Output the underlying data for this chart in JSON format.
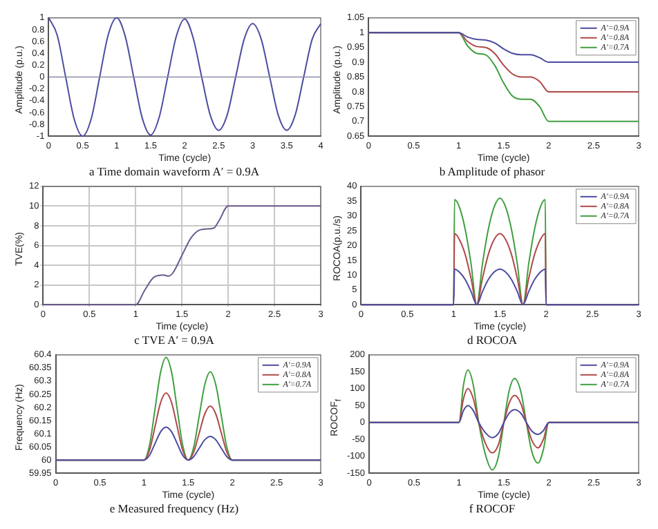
{
  "chart_data": [
    {
      "type": "line",
      "title": "a Time domain waveform A′ = 0.9A",
      "xlabel": "Time (cycle)",
      "ylabel": "Amplitude (p.u.)",
      "x": [
        0,
        0.125,
        0.25,
        0.375,
        0.5,
        0.625,
        0.75,
        0.875,
        1,
        1.125,
        1.25,
        1.375,
        1.5,
        1.625,
        1.75,
        1.875,
        2,
        2.125,
        2.25,
        2.375,
        2.5,
        2.625,
        2.75,
        2.875,
        3,
        3.125,
        3.25,
        3.375,
        3.5,
        3.625,
        3.75,
        3.875,
        4
      ],
      "series": [
        {
          "color": "#4b4ba0",
          "values": [
            1,
            0.71,
            0,
            -0.71,
            -1,
            -0.71,
            0,
            0.71,
            1,
            0.69,
            0,
            -0.69,
            -0.98,
            -0.68,
            0,
            0.68,
            0.98,
            0.66,
            0,
            -0.64,
            -0.9,
            -0.64,
            0,
            0.64,
            0.9,
            0.64,
            0,
            -0.64,
            -0.9,
            -0.64,
            0,
            0.64,
            0.9
          ]
        }
      ],
      "xlim": [
        0,
        4
      ],
      "xticks": [
        0,
        0.5,
        1,
        1.5,
        2,
        2.5,
        3,
        3.5,
        4
      ],
      "ylim": [
        -1,
        1
      ],
      "yticks": [
        -1,
        -0.8,
        -0.6,
        -0.4,
        -0.2,
        0,
        0.2,
        0.4,
        0.6,
        0.8,
        1
      ],
      "ref_lines": [
        {
          "axis": "y",
          "value": 0,
          "color": "#8a8aa8"
        }
      ],
      "marker": "none",
      "line_style": "solid"
    },
    {
      "type": "line",
      "title": "b Amplitude of phasor",
      "xlabel": "Time (cycle)",
      "ylabel": "Amplitude (p.u.)",
      "x": [
        0,
        1,
        1.1,
        1.2,
        1.3,
        1.4,
        1.5,
        1.6,
        1.7,
        1.8,
        1.9,
        2,
        3
      ],
      "series": [
        {
          "name": "A′=0.9A",
          "color": "#4b4ba0",
          "values": [
            1,
            1,
            0.985,
            0.977,
            0.975,
            0.965,
            0.945,
            0.93,
            0.925,
            0.925,
            0.915,
            0.9,
            0.9
          ]
        },
        {
          "name": "A′=0.8A",
          "color": "#b04848",
          "values": [
            1,
            1,
            0.97,
            0.953,
            0.95,
            0.93,
            0.89,
            0.86,
            0.85,
            0.85,
            0.835,
            0.8,
            0.8
          ]
        },
        {
          "name": "A′=0.7A",
          "color": "#3f9f3f",
          "values": [
            1,
            1,
            0.955,
            0.93,
            0.925,
            0.89,
            0.83,
            0.785,
            0.775,
            0.775,
            0.75,
            0.7,
            0.7
          ]
        }
      ],
      "xlim": [
        0,
        3
      ],
      "xticks": [
        0,
        0.5,
        1,
        1.5,
        2,
        2.5,
        3
      ],
      "ylim": [
        0.65,
        1.05
      ],
      "yticks": [
        0.65,
        0.7,
        0.75,
        0.8,
        0.85,
        0.9,
        0.95,
        1,
        1.05
      ],
      "legend": "top right",
      "marker": "none",
      "line_style": "solid"
    },
    {
      "type": "line",
      "title": "c TVE A′ = 0.9A",
      "xlabel": "Time (cycle)",
      "ylabel": "TVE(%)",
      "x": [
        0,
        1,
        1.1,
        1.2,
        1.3,
        1.35,
        1.4,
        1.5,
        1.6,
        1.7,
        1.8,
        1.85,
        1.9,
        2,
        3
      ],
      "series": [
        {
          "color": "#6a5a8a",
          "values": [
            0,
            0,
            1.5,
            2.8,
            3,
            2.9,
            3.2,
            5,
            6.8,
            7.6,
            7.7,
            7.8,
            8.5,
            10,
            10
          ]
        }
      ],
      "xlim": [
        0,
        3
      ],
      "xticks": [
        0,
        0.5,
        1,
        1.5,
        2,
        2.5,
        3
      ],
      "ylim": [
        0,
        12
      ],
      "yticks": [
        0,
        2,
        4,
        6,
        8,
        10,
        12
      ],
      "grid": true,
      "marker": "none",
      "line_style": "solid"
    },
    {
      "type": "line",
      "title": "d ROCOA",
      "xlabel": "Time (cycle)",
      "ylabel": "ROCOA(p.u./s)",
      "x": [
        0,
        1,
        1.01,
        1.0625,
        1.125,
        1.1875,
        1.25,
        1.3125,
        1.375,
        1.4375,
        1.5,
        1.5625,
        1.625,
        1.6875,
        1.75,
        1.8125,
        1.875,
        1.9375,
        1.99,
        2,
        3
      ],
      "series": [
        {
          "name": "A′=0.9A",
          "color": "#4b4ba0",
          "values": [
            0,
            0,
            12,
            11,
            8.5,
            4.5,
            0,
            4.5,
            8.5,
            11,
            12,
            11,
            8.5,
            4.5,
            0,
            4.5,
            8.5,
            11,
            12,
            0,
            0
          ]
        },
        {
          "name": "A′=0.8A",
          "color": "#b04848",
          "values": [
            0,
            0,
            24,
            22,
            17,
            9,
            0,
            9,
            17,
            22,
            24,
            22,
            17,
            9,
            0,
            9,
            17,
            22,
            24,
            0,
            0
          ]
        },
        {
          "name": "A′=0.7A",
          "color": "#3f9f3f",
          "values": [
            0,
            0,
            35.5,
            33,
            25.5,
            14,
            0,
            14,
            25.5,
            33,
            36,
            33,
            25.5,
            14,
            0,
            14,
            25.5,
            33,
            35.5,
            0,
            0
          ]
        }
      ],
      "xlim": [
        0,
        3
      ],
      "xticks": [
        0,
        0.5,
        1,
        1.5,
        2,
        2.5,
        3
      ],
      "ylim": [
        0,
        40
      ],
      "yticks": [
        0,
        5,
        10,
        15,
        20,
        25,
        30,
        35,
        40
      ],
      "legend": "top right",
      "marker": "none",
      "line_style": "solid"
    },
    {
      "type": "line",
      "title": "e Measured frequency (Hz)",
      "xlabel": "Time (cycle)",
      "ylabel": "Frequency (Hz)",
      "x": [
        0,
        1,
        1.0625,
        1.125,
        1.1875,
        1.25,
        1.3125,
        1.375,
        1.4375,
        1.5,
        1.5625,
        1.625,
        1.6875,
        1.75,
        1.8125,
        1.875,
        1.9375,
        2,
        3
      ],
      "series": [
        {
          "name": "A′=0.9A",
          "color": "#4b4ba0",
          "values": [
            60,
            60,
            60.018,
            60.063,
            60.107,
            60.125,
            60.107,
            60.063,
            60.018,
            60,
            60.013,
            60.045,
            60.077,
            60.09,
            60.077,
            60.045,
            60.013,
            60,
            60
          ]
        },
        {
          "name": "A′=0.8A",
          "color": "#b04848",
          "values": [
            60,
            60,
            60.037,
            60.128,
            60.218,
            60.255,
            60.218,
            60.128,
            60.037,
            60,
            60.03,
            60.103,
            60.175,
            60.205,
            60.175,
            60.103,
            60.03,
            60,
            60
          ]
        },
        {
          "name": "A′=0.7A",
          "color": "#3f9f3f",
          "values": [
            60,
            60,
            60.057,
            60.195,
            60.333,
            60.39,
            60.333,
            60.195,
            60.057,
            60,
            60.049,
            60.168,
            60.286,
            60.335,
            60.286,
            60.168,
            60.049,
            60,
            60
          ]
        }
      ],
      "xlim": [
        0,
        3
      ],
      "xticks": [
        0,
        0.5,
        1,
        1.5,
        2,
        2.5,
        3
      ],
      "ylim": [
        59.95,
        60.4
      ],
      "yticks": [
        59.95,
        60,
        60.05,
        60.1,
        60.15,
        60.2,
        60.25,
        60.3,
        60.35,
        60.4
      ],
      "legend": "top right",
      "marker": "none",
      "line_style": "solid"
    },
    {
      "type": "line",
      "title": "f ROCOF",
      "xlabel": "Time (cycle)",
      "ylabel": "ROCOF$_{f}$",
      "x": [
        0,
        1,
        1.05,
        1.1,
        1.16,
        1.22,
        1.3,
        1.37,
        1.44,
        1.5,
        1.56,
        1.62,
        1.69,
        1.75,
        1.81,
        1.88,
        1.94,
        2,
        3
      ],
      "series": [
        {
          "name": "A′=0.9A",
          "color": "#4b4ba0",
          "values": [
            0,
            0,
            35,
            50,
            35,
            0,
            -32,
            -45,
            -32,
            0,
            28,
            38,
            27,
            0,
            -25,
            -35,
            -24,
            0,
            0
          ]
        },
        {
          "name": "A′=0.8A",
          "color": "#b04848",
          "values": [
            0,
            0,
            70,
            100,
            70,
            0,
            -65,
            -90,
            -65,
            0,
            58,
            80,
            55,
            0,
            -52,
            -75,
            -50,
            0,
            0
          ]
        },
        {
          "name": "A′=0.7A",
          "color": "#3f9f3f",
          "values": [
            0,
            0,
            110,
            155,
            110,
            0,
            -100,
            -140,
            -100,
            0,
            95,
            130,
            90,
            0,
            -85,
            -120,
            -80,
            0,
            0
          ]
        }
      ],
      "xlim": [
        0,
        3
      ],
      "xticks": [
        0,
        0.5,
        1,
        1.5,
        2,
        2.5,
        3
      ],
      "ylim": [
        -150,
        200
      ],
      "yticks": [
        -150,
        -100,
        -50,
        0,
        50,
        100,
        150,
        200
      ],
      "legend": "top right",
      "marker": "none",
      "line_style": "solid"
    }
  ]
}
